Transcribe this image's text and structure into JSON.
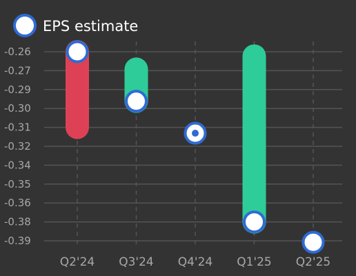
{
  "chart_data": {
    "type": "range-bar",
    "legend": {
      "label": "EPS estimate",
      "position": "top-left"
    },
    "categories": [
      "Q2'24",
      "Q3'24",
      "Q4'24",
      "Q1'25",
      "Q2'25"
    ],
    "y_ticks": [
      "-0.26",
      "-0.27",
      "-0.29",
      "-0.30",
      "-0.31",
      "-0.32",
      "-0.34",
      "-0.35",
      "-0.36",
      "-0.38",
      "-0.39"
    ],
    "ylim": [
      -0.395,
      -0.255
    ],
    "grid": {
      "horizontal": true,
      "vertical": "dashed"
    },
    "points": [
      {
        "category": "Q2'24",
        "estimate": -0.26,
        "actual": -0.312,
        "outcome": "miss"
      },
      {
        "category": "Q3'24",
        "estimate": -0.294,
        "actual": -0.272,
        "outcome": "beat"
      },
      {
        "category": "Q4'24",
        "estimate": -0.316,
        "actual": -0.316,
        "outcome": "inline"
      },
      {
        "category": "Q1'25",
        "estimate": -0.377,
        "actual": -0.263,
        "outcome": "beat"
      },
      {
        "category": "Q2'25",
        "estimate": -0.391,
        "actual": null,
        "outcome": "pending"
      }
    ],
    "colors": {
      "beat": "#2ecc98",
      "miss": "#de4155",
      "marker_fill": "#ffffff",
      "marker_stroke": "#2f6bd4",
      "grid": "#555555",
      "tick_text": "#a8a8a8",
      "background": "#333333"
    }
  }
}
